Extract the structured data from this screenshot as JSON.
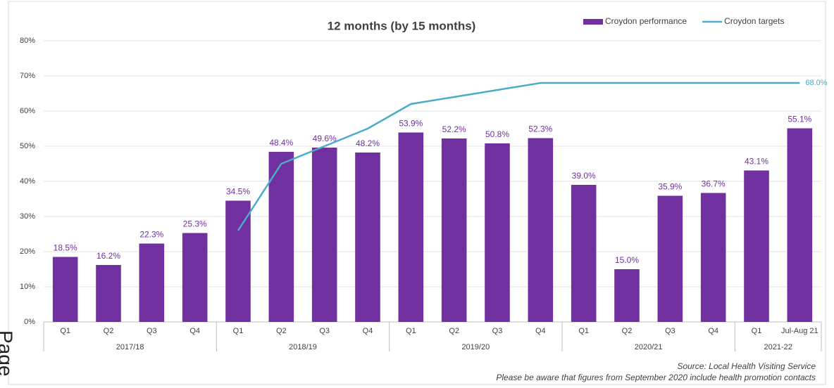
{
  "chart_data": {
    "type": "bar",
    "title": "12 months (by 15 months)",
    "categories": [
      "Q1",
      "Q2",
      "Q3",
      "Q4",
      "Q1",
      "Q2",
      "Q3",
      "Q4",
      "Q1",
      "Q2",
      "Q3",
      "Q4",
      "Q1",
      "Q2",
      "Q3",
      "Q4",
      "Q1",
      "Jul-Aug 21"
    ],
    "category_groups": [
      {
        "label": "2017/18",
        "span": 4
      },
      {
        "label": "2018/19",
        "span": 4
      },
      {
        "label": "2019/20",
        "span": 4
      },
      {
        "label": "2020/21",
        "span": 4
      },
      {
        "label": "2021-22",
        "span": 2
      }
    ],
    "series": [
      {
        "name": "Croydon performance",
        "type": "bar",
        "color": "#7030a0",
        "values": [
          18.5,
          16.2,
          22.3,
          25.3,
          34.5,
          48.4,
          49.6,
          48.2,
          53.9,
          52.2,
          50.8,
          52.3,
          39.0,
          15.0,
          35.9,
          36.7,
          43.1,
          55.1
        ],
        "value_labels": [
          "18.5%",
          "16.2%",
          "22.3%",
          "25.3%",
          "34.5%",
          "48.4%",
          "49.6%",
          "48.2%",
          "53.9%",
          "52.2%",
          "50.8%",
          "52.3%",
          "39.0%",
          "15.0%",
          "35.9%",
          "36.7%",
          "43.1%",
          "55.1%"
        ]
      },
      {
        "name": "Croydon targets",
        "type": "line",
        "color": "#4bacc6",
        "values": [
          null,
          null,
          null,
          null,
          26,
          45,
          50,
          55,
          62,
          64,
          66,
          68,
          68,
          68,
          68,
          68,
          68,
          68
        ],
        "end_label": "68.0%"
      }
    ],
    "ylim": [
      0,
      80
    ],
    "yticks": [
      {
        "value": 0,
        "label": "0%"
      },
      {
        "value": 10,
        "label": "10%"
      },
      {
        "value": 20,
        "label": "20%"
      },
      {
        "value": 30,
        "label": "30%"
      },
      {
        "value": 40,
        "label": "40%"
      },
      {
        "value": 50,
        "label": "50%"
      },
      {
        "value": 60,
        "label": "60%"
      },
      {
        "value": 70,
        "label": "70%"
      },
      {
        "value": 80,
        "label": "80%"
      }
    ],
    "grid": true,
    "legend": "top-right",
    "source": "Source: Local Health Visiting Service",
    "note": "Please be aware that figures from September 2020 include health promotion contacts",
    "page_label": "Page"
  }
}
